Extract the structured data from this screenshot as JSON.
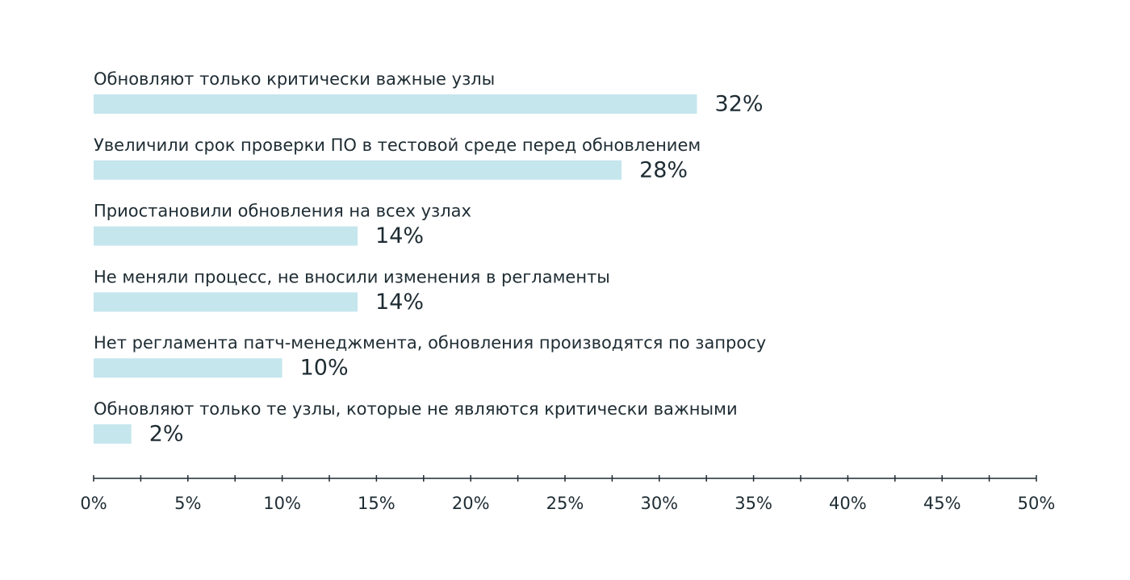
{
  "chart_data": {
    "type": "bar",
    "orientation": "horizontal",
    "categories": [
      "Обновляют только критически важные узлы",
      "Увеличили срок проверки ПО в тестовой среде перед обновлением",
      "Приостановили обновления на всех узлах",
      "Не меняли процесс, не вносили изменения в регламенты",
      "Нет регламента патч-менеджмента, обновления производятся по запросу",
      "Обновляют только те узлы, которые не являются критически важными"
    ],
    "values": [
      32,
      28,
      14,
      14,
      10,
      2
    ],
    "value_labels": [
      "32%",
      "28%",
      "14%",
      "14%",
      "10%",
      "2%"
    ],
    "xlim": [
      0,
      50
    ],
    "x_ticks": [
      0,
      5,
      10,
      15,
      20,
      25,
      30,
      35,
      40,
      45,
      50
    ],
    "x_tick_labels": [
      "0%",
      "5%",
      "10%",
      "15%",
      "20%",
      "25%",
      "30%",
      "35%",
      "40%",
      "45%",
      "50%"
    ],
    "minor_tick_step": 2.5,
    "grid": false,
    "legend": "none",
    "colors": {
      "bar": "#c5e6ed",
      "axis": "#1e2c33",
      "text": "#1e2c33"
    }
  }
}
